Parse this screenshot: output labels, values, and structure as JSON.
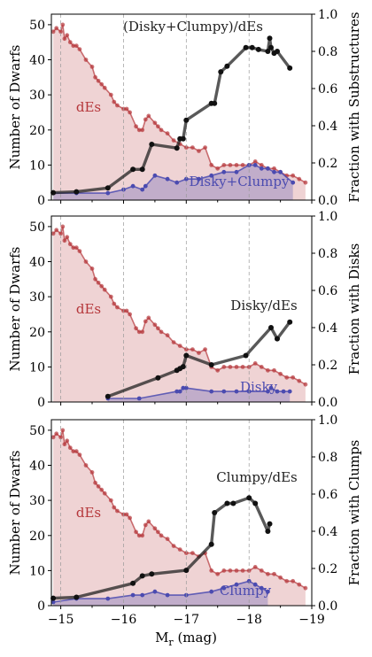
{
  "figure": {
    "x_axis_label": "M",
    "x_axis_label_sub": "r",
    "x_axis_label_unit": " (mag)",
    "x_ticks": [
      "−15",
      "−16",
      "−17",
      "−18",
      "−19"
    ]
  },
  "chart_data": [
    {
      "type": "area",
      "xlim": [
        -14.85,
        -19.0
      ],
      "ylim_left": [
        0,
        53
      ],
      "ylim_right": [
        0,
        1.0
      ],
      "vlines": [
        -15,
        -16,
        -17,
        -18
      ],
      "ylabel_left": "Number of Dwarfs",
      "ylabel_right": "Fraction with Substructures",
      "y_ticks_left": [
        "0",
        "10",
        "20",
        "30",
        "40",
        "50"
      ],
      "y_ticks_right": [
        "0.0",
        "0.2",
        "0.4",
        "0.6",
        "0.8",
        "1.0"
      ],
      "labels": {
        "dEs": "dEs",
        "sub": "Disky+Clumpy",
        "ratio": "(Disky+Clumpy)/dEs"
      },
      "colors": {
        "dEs": "#b5363a",
        "sub": "#4b4bb0",
        "ratio": "#222222"
      },
      "series": [
        {
          "name": "dEs",
          "x": [
            -14.88,
            -14.93,
            -15.0,
            -15.03,
            -15.06,
            -15.1,
            -15.15,
            -15.2,
            -15.25,
            -15.3,
            -15.4,
            -15.5,
            -15.55,
            -15.6,
            -15.65,
            -15.7,
            -15.8,
            -15.85,
            -15.9,
            -16.0,
            -16.05,
            -16.1,
            -16.2,
            -16.25,
            -16.3,
            -16.35,
            -16.4,
            -16.5,
            -16.55,
            -16.6,
            -16.7,
            -16.8,
            -16.9,
            -17.0,
            -17.1,
            -17.2,
            -17.3,
            -17.4,
            -17.5,
            -17.6,
            -17.7,
            -17.8,
            -17.9,
            -18.0,
            -18.1,
            -18.2,
            -18.3,
            -18.4,
            -18.5,
            -18.6,
            -18.7,
            -18.8,
            -18.9
          ],
          "y": [
            48,
            49,
            48,
            50,
            46,
            47,
            45,
            44,
            44,
            43,
            40,
            38,
            35,
            34,
            33,
            32,
            30,
            28,
            27,
            26,
            26,
            25,
            21,
            20,
            20,
            23,
            24,
            22,
            21,
            20,
            19,
            17,
            16,
            15,
            15,
            14,
            15,
            10,
            9,
            10,
            10,
            10,
            10,
            10,
            11,
            10,
            9,
            9,
            8,
            7,
            7,
            6,
            5
          ]
        },
        {
          "name": "Disky+Clumpy",
          "x": [
            -14.88,
            -15.25,
            -15.75,
            -16.0,
            -16.15,
            -16.3,
            -16.35,
            -16.5,
            -16.7,
            -16.85,
            -17.0,
            -17.2,
            -17.4,
            -17.6,
            -17.8,
            -18.0,
            -18.1,
            -18.2,
            -18.3,
            -18.4,
            -18.5,
            -18.7
          ],
          "y": [
            2,
            2,
            2,
            3,
            4,
            3,
            4,
            7,
            6,
            5,
            6,
            6,
            7,
            8,
            8,
            10,
            10,
            9,
            9,
            8,
            8,
            5
          ]
        },
        {
          "name": "(Disky+Clumpy)/dEs",
          "x": [
            -14.88,
            -15.25,
            -15.75,
            -16.15,
            -16.3,
            -16.45,
            -16.85,
            -16.9,
            -16.95,
            -17.0,
            -17.4,
            -17.45,
            -17.55,
            -17.65,
            -17.95,
            -18.05,
            -18.15,
            -18.3,
            -18.33,
            -18.35,
            -18.4,
            -18.45,
            -18.65
          ],
          "y": [
            0.04,
            0.045,
            0.065,
            0.165,
            0.165,
            0.3,
            0.28,
            0.33,
            0.33,
            0.43,
            0.52,
            0.52,
            0.69,
            0.72,
            0.82,
            0.82,
            0.81,
            0.8,
            0.87,
            0.82,
            0.79,
            0.8,
            0.71
          ]
        }
      ]
    },
    {
      "type": "area",
      "xlim": [
        -14.85,
        -19.0
      ],
      "ylim_left": [
        0,
        53
      ],
      "ylim_right": [
        0,
        1.0
      ],
      "vlines": [
        -15,
        -16,
        -17,
        -18
      ],
      "ylabel_left": "Number of Dwarfs",
      "ylabel_right": "Fraction with Disks",
      "y_ticks_left": [
        "0",
        "10",
        "20",
        "30",
        "40",
        "50"
      ],
      "y_ticks_right": [
        "0.0",
        "0.2",
        "0.4",
        "0.6",
        "0.8",
        "1.0"
      ],
      "labels": {
        "dEs": "dEs",
        "sub": "Disky",
        "ratio": "Disky/dEs"
      },
      "colors": {
        "dEs": "#b5363a",
        "sub": "#4b4bb0",
        "ratio": "#222222"
      },
      "series": [
        {
          "name": "dEs",
          "x": [
            -14.88,
            -14.93,
            -15.0,
            -15.03,
            -15.06,
            -15.1,
            -15.15,
            -15.2,
            -15.25,
            -15.3,
            -15.4,
            -15.5,
            -15.55,
            -15.6,
            -15.65,
            -15.7,
            -15.8,
            -15.85,
            -15.9,
            -16.0,
            -16.05,
            -16.1,
            -16.2,
            -16.25,
            -16.3,
            -16.35,
            -16.4,
            -16.5,
            -16.55,
            -16.6,
            -16.7,
            -16.8,
            -16.9,
            -17.0,
            -17.1,
            -17.2,
            -17.3,
            -17.4,
            -17.5,
            -17.6,
            -17.7,
            -17.8,
            -17.9,
            -18.0,
            -18.1,
            -18.2,
            -18.3,
            -18.4,
            -18.5,
            -18.6,
            -18.7,
            -18.8,
            -18.9
          ],
          "y": [
            48,
            49,
            48,
            50,
            46,
            47,
            45,
            44,
            44,
            43,
            40,
            38,
            35,
            34,
            33,
            32,
            30,
            28,
            27,
            26,
            26,
            25,
            21,
            20,
            20,
            23,
            24,
            22,
            21,
            20,
            19,
            17,
            16,
            15,
            15,
            14,
            15,
            10,
            9,
            10,
            10,
            10,
            10,
            10,
            11,
            10,
            9,
            9,
            8,
            7,
            7,
            6,
            5
          ]
        },
        {
          "name": "Disky",
          "x": [
            -15.75,
            -16.25,
            -16.85,
            -16.9,
            -16.95,
            -17.0,
            -17.4,
            -17.6,
            -17.8,
            -18.0,
            -18.3,
            -18.35,
            -18.45,
            -18.55,
            -18.65
          ],
          "y": [
            1,
            1,
            3,
            3,
            4,
            4,
            3,
            3,
            3,
            3,
            3,
            4,
            3,
            3,
            3
          ]
        },
        {
          "name": "Disky/dEs",
          "x": [
            -15.75,
            -16.55,
            -16.85,
            -16.9,
            -16.95,
            -17.0,
            -17.4,
            -17.95,
            -18.35,
            -18.45,
            -18.65
          ],
          "y": [
            0.03,
            0.13,
            0.17,
            0.18,
            0.19,
            0.25,
            0.2,
            0.25,
            0.4,
            0.34,
            0.43
          ]
        }
      ]
    },
    {
      "type": "area",
      "xlim": [
        -14.85,
        -19.0
      ],
      "ylim_left": [
        0,
        53
      ],
      "ylim_right": [
        0,
        1.0
      ],
      "vlines": [
        -15,
        -16,
        -17,
        -18
      ],
      "ylabel_left": "Number of Dwarfs",
      "ylabel_right": "Fraction with Clumps",
      "y_ticks_left": [
        "0",
        "10",
        "20",
        "30",
        "40",
        "50"
      ],
      "y_ticks_right": [
        "0.0",
        "0.2",
        "0.4",
        "0.6",
        "0.8",
        "1.0"
      ],
      "labels": {
        "dEs": "dEs",
        "sub": "Clumpy",
        "ratio": "Clumpy/dEs"
      },
      "colors": {
        "dEs": "#b5363a",
        "sub": "#4b4bb0",
        "ratio": "#222222"
      },
      "series": [
        {
          "name": "dEs",
          "x": [
            -14.88,
            -14.93,
            -15.0,
            -15.03,
            -15.06,
            -15.1,
            -15.15,
            -15.2,
            -15.25,
            -15.3,
            -15.4,
            -15.5,
            -15.55,
            -15.6,
            -15.65,
            -15.7,
            -15.8,
            -15.85,
            -15.9,
            -16.0,
            -16.05,
            -16.1,
            -16.2,
            -16.25,
            -16.3,
            -16.35,
            -16.4,
            -16.5,
            -16.55,
            -16.6,
            -16.7,
            -16.8,
            -16.9,
            -17.0,
            -17.1,
            -17.2,
            -17.3,
            -17.4,
            -17.5,
            -17.6,
            -17.7,
            -17.8,
            -17.9,
            -18.0,
            -18.1,
            -18.2,
            -18.3,
            -18.4,
            -18.5,
            -18.6,
            -18.7,
            -18.8,
            -18.9
          ],
          "y": [
            48,
            49,
            48,
            50,
            46,
            47,
            45,
            44,
            44,
            43,
            40,
            38,
            35,
            34,
            33,
            32,
            30,
            28,
            27,
            26,
            26,
            25,
            21,
            20,
            20,
            23,
            24,
            22,
            21,
            20,
            19,
            17,
            16,
            15,
            15,
            14,
            15,
            10,
            9,
            10,
            10,
            10,
            10,
            10,
            11,
            10,
            9,
            9,
            8,
            7,
            7,
            6,
            5
          ]
        },
        {
          "name": "Clumpy",
          "x": [
            -14.88,
            -15.25,
            -15.75,
            -16.15,
            -16.3,
            -16.5,
            -16.7,
            -17.0,
            -17.4,
            -17.6,
            -17.8,
            -18.0,
            -18.1,
            -18.2,
            -18.3
          ],
          "y": [
            1,
            2,
            2,
            3,
            3,
            4,
            3,
            3,
            4,
            5,
            6,
            7,
            6,
            5,
            4
          ]
        },
        {
          "name": "Clumpy/dEs",
          "x": [
            -14.88,
            -15.25,
            -16.15,
            -16.3,
            -16.45,
            -17.0,
            -17.4,
            -17.45,
            -17.65,
            -17.75,
            -18.0,
            -18.1,
            -18.3,
            -18.33
          ],
          "y": [
            0.04,
            0.045,
            0.12,
            0.16,
            0.17,
            0.19,
            0.33,
            0.5,
            0.55,
            0.55,
            0.58,
            0.55,
            0.4,
            0.44
          ]
        }
      ]
    }
  ]
}
